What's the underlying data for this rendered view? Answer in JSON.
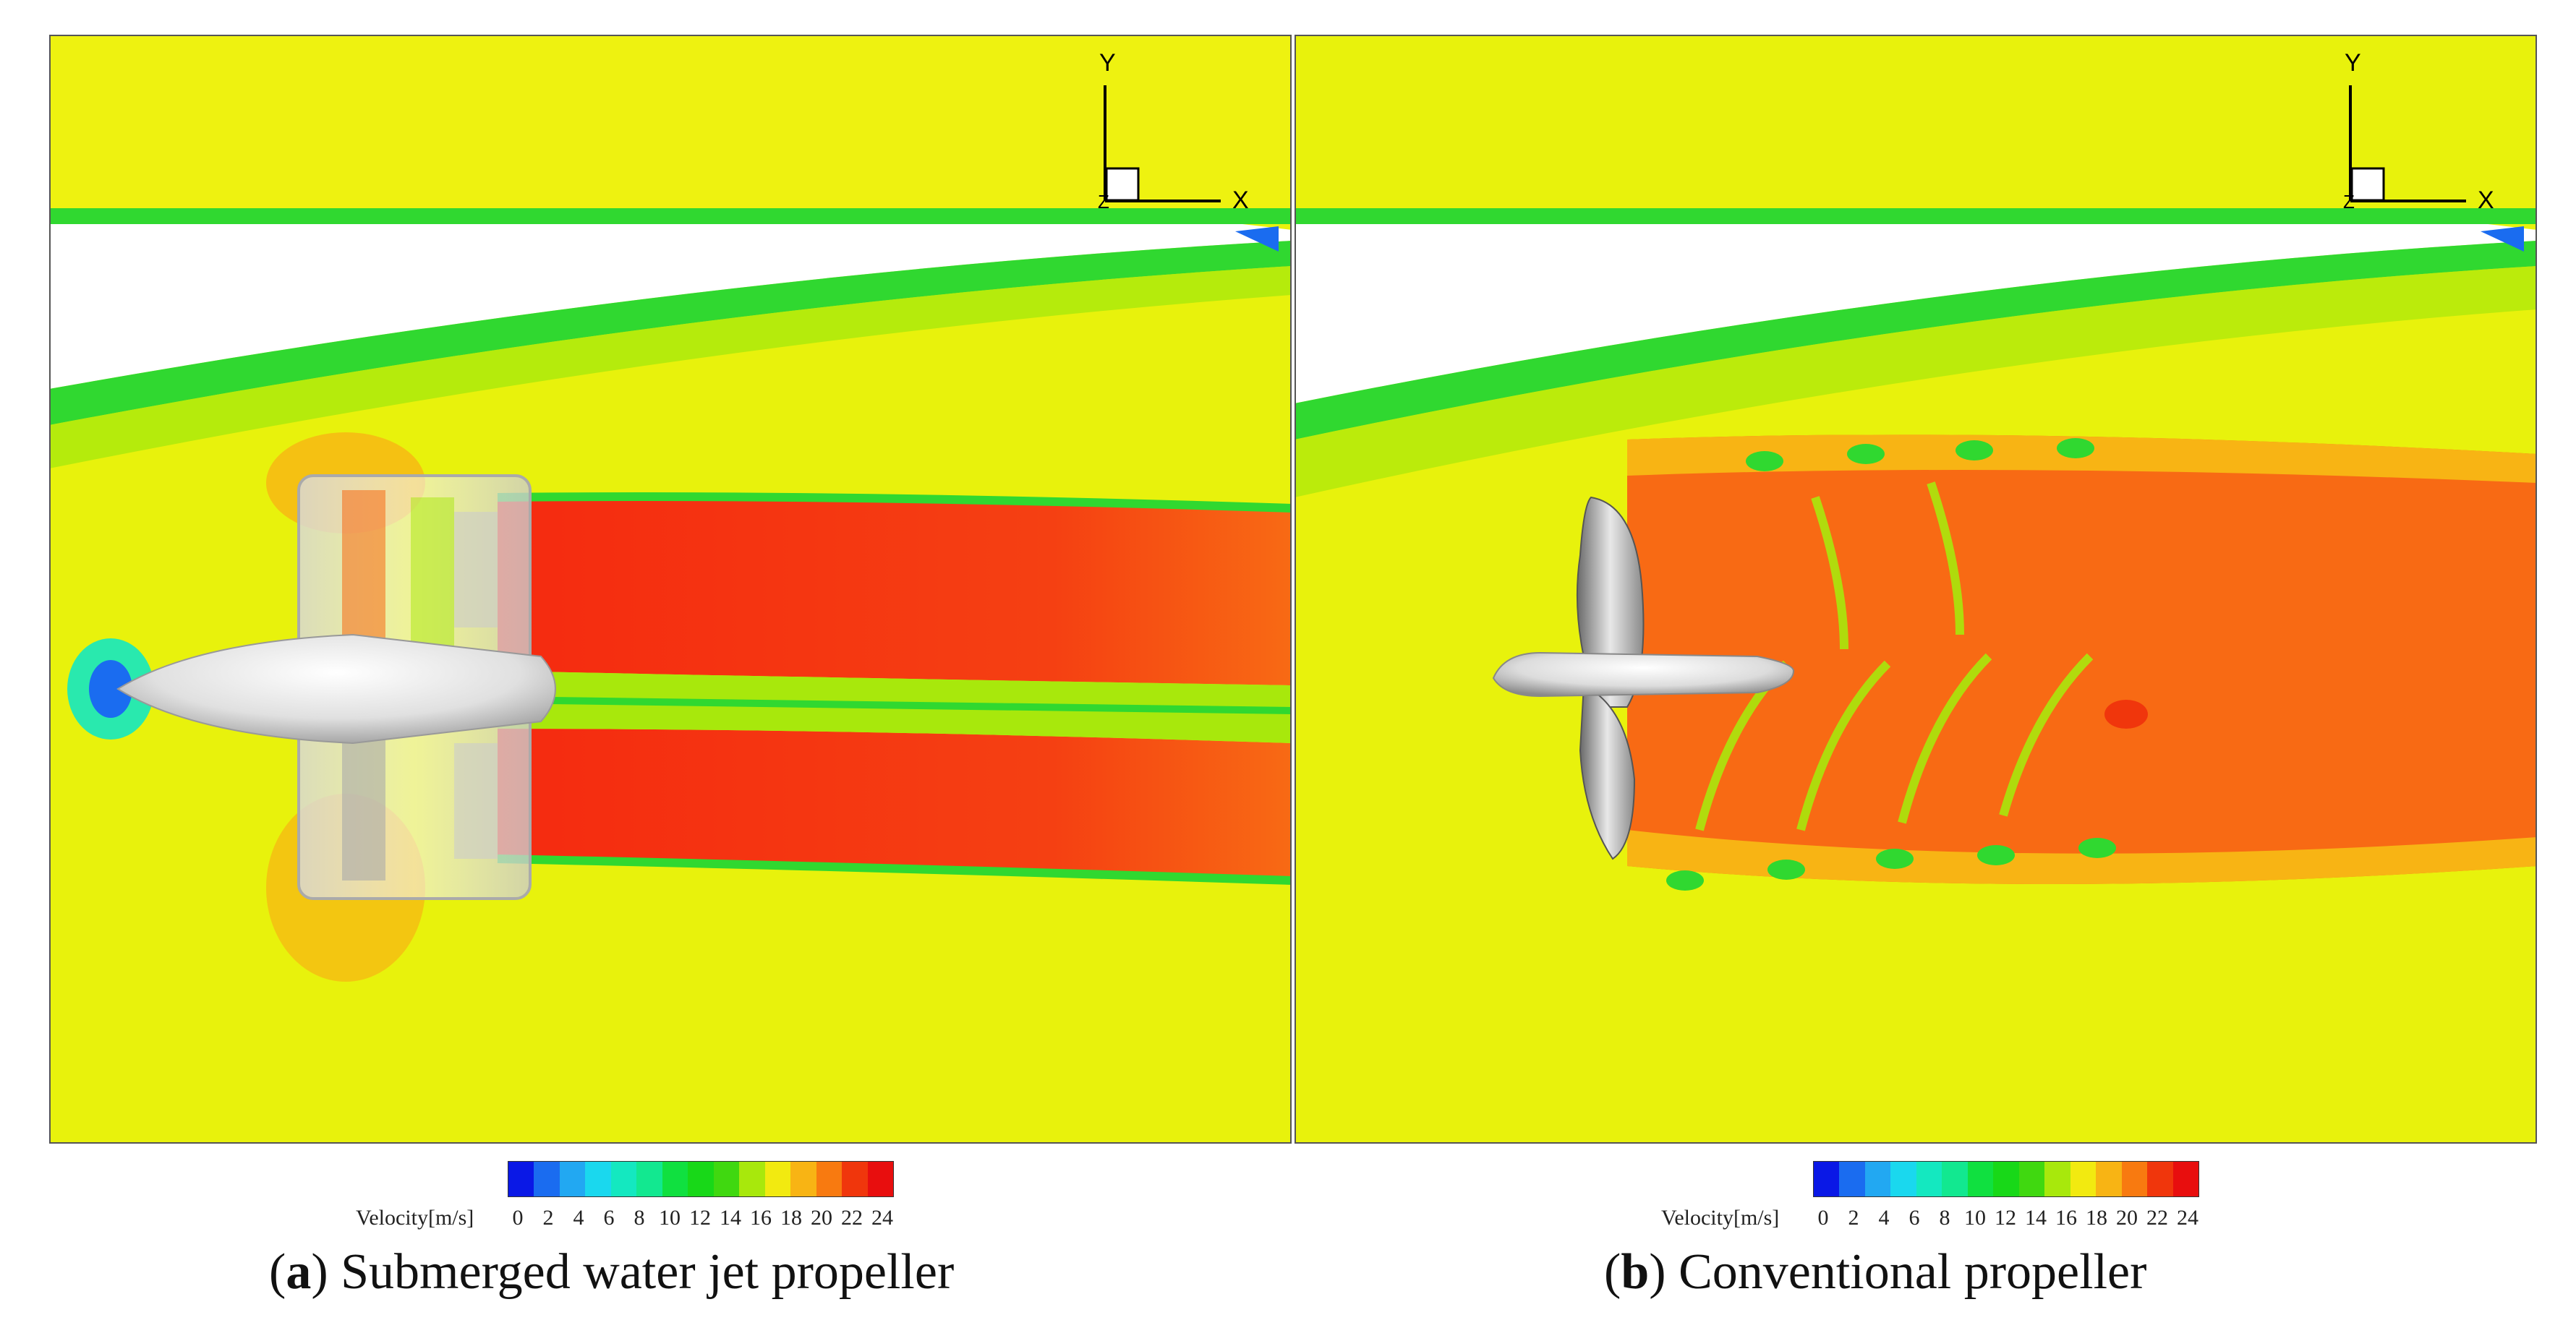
{
  "panels": [
    {
      "id": "a",
      "caption_letter": "a",
      "caption_text": "Submerged water jet propeller",
      "axis_labels": {
        "y": "Y",
        "x": "X",
        "z": "Z"
      }
    },
    {
      "id": "b",
      "caption_letter": "b",
      "caption_text": "Conventional propeller",
      "axis_labels": {
        "y": "Y",
        "x": "X",
        "z": "Z"
      }
    }
  ],
  "colorbar": {
    "label": "Velocity[m/s]",
    "ticks": [
      "0",
      "2",
      "4",
      "6",
      "8",
      "10",
      "12",
      "14",
      "16",
      "18",
      "20",
      "22",
      "24"
    ],
    "colors": [
      "#0a18e6",
      "#1a6cf0",
      "#22a8f2",
      "#1ad8ee",
      "#14e8c0",
      "#12e890",
      "#10e040",
      "#18d818",
      "#40d810",
      "#a8e80c",
      "#f2ea10",
      "#f8b414",
      "#f87a10",
      "#f0360c",
      "#e80e0e"
    ]
  },
  "colors": {
    "freestream": "#e8f20c",
    "wake": "#f86a14",
    "jet": "#f52a10",
    "boundary": "#30d830"
  }
}
